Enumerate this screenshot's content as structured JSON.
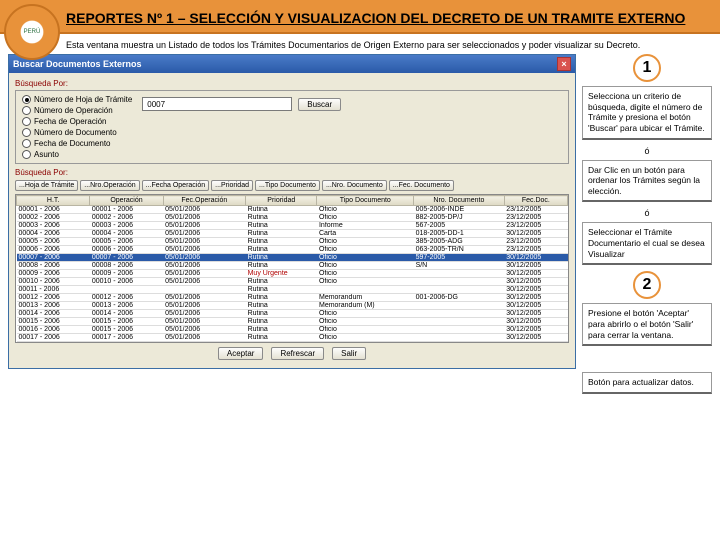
{
  "header": {
    "title": "REPORTES Nº 1 – SELECCIÓN Y VISUALIZACION DEL DECRETO DE UN TRAMITE EXTERNO",
    "subtitle": "Esta ventana muestra un Listado de todos los Trámites Documentarios de Origen Externo para ser seleccionados y poder visualizar su Decreto."
  },
  "window": {
    "title": "Buscar Documentos Externos",
    "section_busqueda": "Búsqueda Por:",
    "radios": [
      "Número de Hoja de Trámite",
      "Número de Operación",
      "Fecha de Operación",
      "Número de Documento",
      "Fecha de Documento",
      "Asunto"
    ],
    "radio_selected": 0,
    "search_value": "0007",
    "buscar_label": "Buscar",
    "section_orden": "Búsqueda Por:",
    "sort_buttons": [
      "...Hoja de Trámite",
      "...Nro.Operación",
      "...Fecha Operación",
      "...Prioridad",
      "...Tipo Documento",
      "...Nro. Documento",
      "...Fec. Documento"
    ],
    "columns": [
      "H.T.",
      "Operación",
      "Fec.Operación",
      "Prioridad",
      "Tipo Documento",
      "Nro. Documento",
      "Fec.Doc."
    ],
    "rows": [
      [
        "00001 - 2006",
        "00001 - 2006",
        "05/01/2006",
        "Rutina",
        "Oficio",
        "005-2006-INDE",
        "23/12/2005"
      ],
      [
        "00002 - 2006",
        "00002 - 2006",
        "05/01/2006",
        "Rutina",
        "Oficio",
        "882-2005-DP/J",
        "23/12/2005"
      ],
      [
        "00003 - 2006",
        "00003 - 2006",
        "05/01/2006",
        "Rutina",
        "Informe",
        "567-2005",
        "23/12/2005"
      ],
      [
        "00004 - 2006",
        "00004 - 2006",
        "05/01/2006",
        "Rutina",
        "Carta",
        "018-2005-DD-1",
        "30/12/2005"
      ],
      [
        "00005 - 2006",
        "00005 - 2006",
        "05/01/2006",
        "Rutina",
        "Oficio",
        "385-2005-ADG",
        "23/12/2005"
      ],
      [
        "00006 - 2006",
        "00006 - 2006",
        "05/01/2006",
        "Rutina",
        "Oficio",
        "063-2005-TR/N",
        "23/12/2005"
      ],
      [
        "00007 - 2006",
        "00007 - 2006",
        "05/01/2006",
        "Rutina",
        "Oficio",
        "597-2005",
        "30/12/2005"
      ],
      [
        "00008 - 2006",
        "00008 - 2006",
        "05/01/2006",
        "Rutina",
        "Oficio",
        "S/N",
        "30/12/2005"
      ],
      [
        "00009 - 2006",
        "00009 - 2006",
        "05/01/2006",
        "Muy Urgente",
        "Oficio",
        "",
        "30/12/2005"
      ],
      [
        "00010 - 2006",
        "00010 - 2006",
        "05/01/2006",
        "Rutina",
        "Oficio",
        "",
        "30/12/2005"
      ],
      [
        "00011 - 2006",
        "",
        "",
        "Rutina",
        "",
        "",
        "30/12/2005"
      ],
      [
        "00012 - 2006",
        "00012 - 2006",
        "05/01/2006",
        "Rutina",
        "Memorandum",
        "001-2006-DG",
        "30/12/2005"
      ],
      [
        "00013 - 2006",
        "00013 - 2006",
        "05/01/2006",
        "Rutina",
        "Memorandum (M)",
        "",
        "30/12/2005"
      ],
      [
        "00014 - 2006",
        "00014 - 2006",
        "05/01/2006",
        "Rutina",
        "Oficio",
        "",
        "30/12/2005"
      ],
      [
        "00015 - 2006",
        "00015 - 2006",
        "05/01/2006",
        "Rutina",
        "Oficio",
        "",
        "30/12/2005"
      ],
      [
        "00016 - 2006",
        "00015 - 2006",
        "05/01/2006",
        "Rutina",
        "Oficio",
        "",
        "30/12/2005"
      ],
      [
        "00017 - 2006",
        "00017 - 2006",
        "05/01/2006",
        "Rutina",
        "Oficio",
        "",
        "30/12/2005"
      ]
    ],
    "selected_row": 6,
    "urgent_row": 8,
    "aceptar": "Aceptar",
    "refrescar": "Refrescar",
    "salir": "Salir"
  },
  "callouts": {
    "c1_num": "1",
    "c1_text": "Selecciona un criterio de búsqueda, digite el número de Trámite y presiona el botón 'Buscar' para ubicar el Trámite.",
    "sep": "ó",
    "c1b_text": "Dar Clic en un botón para ordenar los Trámites según la elección.",
    "c1c_text": "Seleccionar el Trámite Documentario el cual se desea Visualizar",
    "c2_num": "2",
    "c2_text": "Presione el botón 'Aceptar' para abrirlo o el botón 'Salir' para cerrar la ventana.",
    "c3_text": "Botón para actualizar datos."
  },
  "style": {
    "accent": "#e8923a",
    "titlebar": "#2a5aa8",
    "panel_bg": "#ece9d8"
  }
}
